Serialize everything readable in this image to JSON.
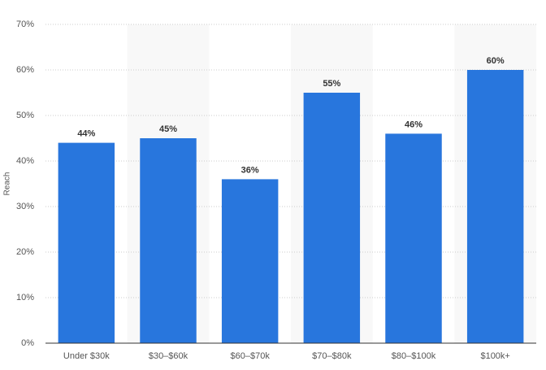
{
  "chart_data": {
    "type": "bar",
    "y_label": "Reach",
    "categories": [
      "Under $30k",
      "$30–$60k",
      "$60–$70k",
      "$70–$80k",
      "$80–$100k",
      "$100k+"
    ],
    "values": [
      44,
      45,
      36,
      55,
      46,
      60
    ],
    "value_labels": [
      "44%",
      "45%",
      "36%",
      "55%",
      "46%",
      "60%"
    ],
    "color": "#2876dd",
    "ylim": [
      0,
      70
    ],
    "yticks": [
      {
        "value": 0,
        "label": "0%"
      },
      {
        "value": 10,
        "label": "10%"
      },
      {
        "value": 20,
        "label": "20%"
      },
      {
        "value": 30,
        "label": "30%"
      },
      {
        "value": 40,
        "label": "40%"
      },
      {
        "value": 50,
        "label": "50%"
      },
      {
        "value": 60,
        "label": "60%"
      },
      {
        "value": 70,
        "label": "70%"
      }
    ],
    "grid": true
  }
}
